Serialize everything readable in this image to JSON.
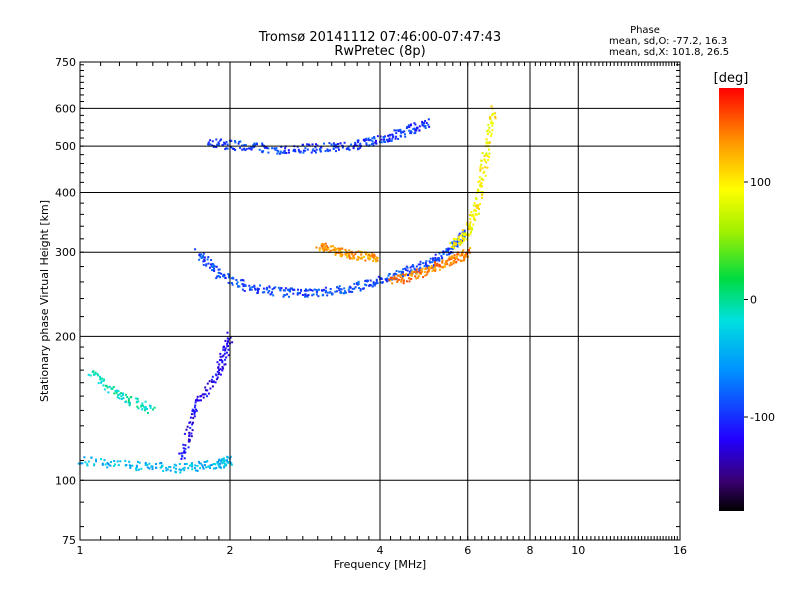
{
  "chart_data": {
    "type": "scatter",
    "title": "Tromsø 20141112 07:46:00-07:47:43",
    "subtitle": "RwPretec (8p)",
    "xlabel": "Frequency [MHz]",
    "ylabel": "Stationary phase Virtual Height [km]",
    "xscale": "log",
    "yscale": "log",
    "xlim": [
      1,
      16
    ],
    "ylim": [
      75,
      750
    ],
    "x_ticks": [
      1,
      2,
      4,
      6,
      8,
      10,
      16
    ],
    "x_tick_labels": [
      "1",
      "2",
      "4",
      "6",
      "8",
      "10",
      "16"
    ],
    "x_grid": [
      2,
      4,
      6,
      8,
      10
    ],
    "y_ticks": [
      75,
      100,
      200,
      300,
      400,
      500,
      600,
      750
    ],
    "y_tick_labels": [
      "75",
      "100",
      "200",
      "300",
      "400",
      "500",
      "600",
      "750"
    ],
    "y_grid": [
      100,
      200,
      300,
      400,
      500,
      600
    ],
    "grid": true,
    "stats": {
      "heading": "Phase",
      "line_o": "mean, sd,O: -77.2, 16.3",
      "line_x": "mean, sd,X: 101.8, 26.5"
    },
    "colorbar": {
      "label": "[deg]",
      "range": [
        -180,
        180
      ],
      "ticks": [
        100,
        0,
        -100
      ],
      "tick_labels": [
        "100",
        "0",
        "-100"
      ],
      "colormap": "rainbow"
    },
    "traces": [
      {
        "freq": [
          1.8,
          2.1,
          2.5,
          3.0,
          3.5,
          4.0,
          4.5,
          5.0
        ],
        "height": [
          510,
          500,
          492,
          495,
          500,
          515,
          535,
          560
        ],
        "phase": -95
      },
      {
        "freq": [
          1.72,
          1.9,
          2.2,
          2.6,
          3.0,
          3.5,
          4.0,
          4.5,
          5.0,
          5.5,
          5.9
        ],
        "height": [
          300,
          270,
          252,
          247,
          247,
          252,
          262,
          272,
          283,
          300,
          330
        ],
        "phase": -90
      },
      {
        "freq": [
          3.0,
          3.3,
          3.6,
          4.0
        ],
        "height": [
          310,
          300,
          295,
          293
        ],
        "phase": 130
      },
      {
        "freq": [
          4.2,
          4.7,
          5.2,
          5.7,
          6.0
        ],
        "height": [
          260,
          268,
          280,
          290,
          300
        ],
        "phase": 140
      },
      {
        "freq": [
          5.6,
          6.0,
          6.3,
          6.5,
          6.8
        ],
        "height": [
          310,
          330,
          380,
          470,
          600
        ],
        "phase": 95
      },
      {
        "freq": [
          1.6,
          1.7,
          1.9,
          2.0
        ],
        "height": [
          110,
          140,
          170,
          200
        ],
        "phase": -120
      },
      {
        "freq": [
          1.05,
          1.2,
          1.4
        ],
        "height": [
          170,
          150,
          140
        ],
        "phase": -10
      },
      {
        "freq": [
          1.0,
          1.3,
          1.6,
          1.9,
          2.0
        ],
        "height": [
          110,
          107,
          106,
          108,
          110
        ],
        "phase": -40
      }
    ]
  }
}
